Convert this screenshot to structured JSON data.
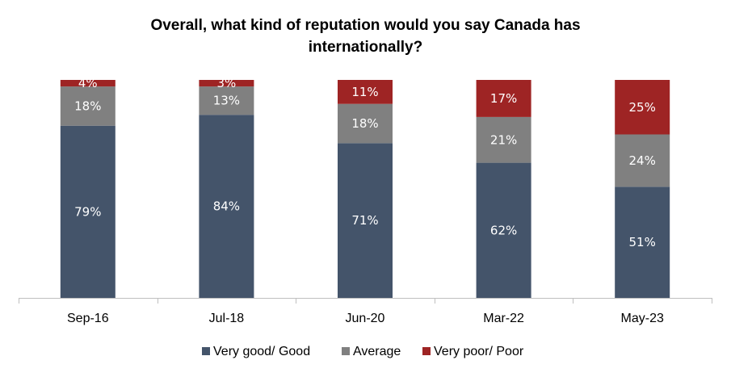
{
  "chart_data": {
    "type": "bar",
    "stacked": true,
    "title_lines": [
      "Overall, what kind of reputation would you say Canada has",
      "internationally?"
    ],
    "categories": [
      "Sep-16",
      "Jul-18",
      "Jun-20",
      "Mar-22",
      "May-23"
    ],
    "series": [
      {
        "name": "Very good/ Good",
        "color": "#44546a",
        "values": [
          79,
          84,
          71,
          62,
          51
        ]
      },
      {
        "name": "Average",
        "color": "#808080",
        "values": [
          18,
          13,
          18,
          21,
          24
        ]
      },
      {
        "name": "Very poor/ Poor",
        "color": "#9e2424",
        "values": [
          4,
          3,
          11,
          17,
          25
        ]
      }
    ],
    "value_suffix": "%",
    "ylim": [
      0,
      100
    ],
    "grid": false,
    "legend_position": "bottom"
  }
}
